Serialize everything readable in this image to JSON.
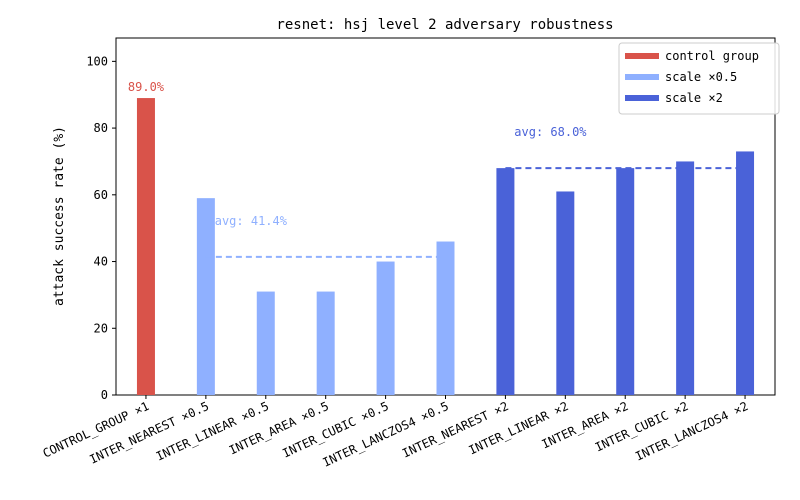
{
  "chart_data": {
    "type": "bar",
    "title": "resnet: hsj level 2 adversary robustness",
    "xlabel": "",
    "ylabel": "attack success rate (%)",
    "ylim": [
      0,
      107
    ],
    "yticks": [
      0,
      20,
      40,
      60,
      80,
      100
    ],
    "grid": false,
    "legend_position": "top-right",
    "categories": [
      "CONTROL_GROUP ×1",
      "INTER_NEAREST ×0.5",
      "INTER_LINEAR ×0.5",
      "INTER_AREA ×0.5",
      "INTER_CUBIC ×0.5",
      "INTER_LANCZOS4 ×0.5",
      "INTER_NEAREST ×2",
      "INTER_LINEAR ×2",
      "INTER_AREA ×2",
      "INTER_CUBIC ×2",
      "INTER_LANCZOS4 ×2"
    ],
    "values": [
      89,
      59,
      31,
      31,
      40,
      46,
      68,
      61,
      68,
      70,
      73
    ],
    "groups": [
      0,
      1,
      1,
      1,
      1,
      1,
      2,
      2,
      2,
      2,
      2
    ],
    "series": [
      {
        "name": "control group",
        "color": "#d9534a"
      },
      {
        "name": "scale ×0.5",
        "color": "#8fb0ff"
      },
      {
        "name": "scale ×2",
        "color": "#4a62d8"
      }
    ],
    "annotations": [
      {
        "text": "89.0%",
        "category_index": 0,
        "value": 89,
        "color": "#d9534a"
      }
    ],
    "averages": [
      {
        "label": "avg: 41.4%",
        "value": 41.4,
        "from_index": 1,
        "to_index": 5,
        "color": "#8fb0ff"
      },
      {
        "label": "avg: 68.0%",
        "value": 68.0,
        "from_index": 6,
        "to_index": 10,
        "color": "#4a62d8"
      }
    ]
  }
}
